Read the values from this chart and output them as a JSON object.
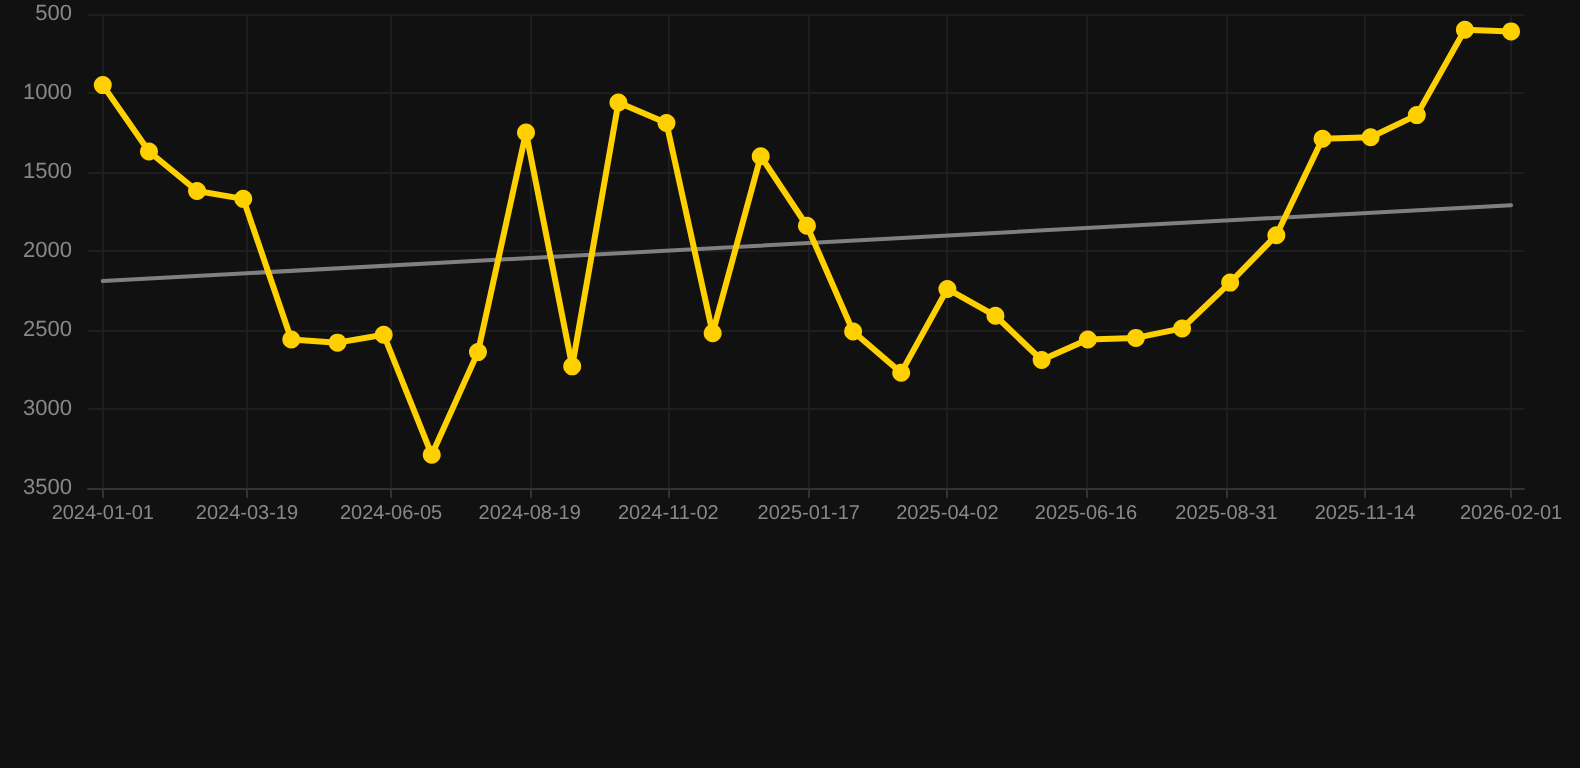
{
  "chart_data": {
    "type": "line",
    "x": [
      "2024-01-01",
      "2024-01-26",
      "2024-02-21",
      "2024-03-17",
      "2024-04-12",
      "2024-05-07",
      "2024-06-01",
      "2024-06-27",
      "2024-07-22",
      "2024-08-17",
      "2024-09-11",
      "2024-10-06",
      "2024-11-01",
      "2024-11-26",
      "2024-12-22",
      "2025-01-16",
      "2025-02-10",
      "2025-03-08",
      "2025-04-02",
      "2025-04-28",
      "2025-05-23",
      "2025-06-17",
      "2025-07-13",
      "2025-08-07",
      "2025-09-02",
      "2025-09-27",
      "2025-10-22",
      "2025-11-17",
      "2025-12-12",
      "2026-01-07",
      "2026-02-01"
    ],
    "series": [
      {
        "color": "#ffd000",
        "marker": "circle",
        "values": [
          950,
          1370,
          1620,
          1670,
          2560,
          2580,
          2530,
          3290,
          2640,
          1250,
          2730,
          1060,
          1190,
          2520,
          1400,
          1840,
          2510,
          2770,
          2240,
          2410,
          2690,
          2560,
          2550,
          2490,
          2200,
          1900,
          1290,
          1280,
          1140,
          600,
          610
        ]
      },
      {
        "color": "#808080",
        "marker": "none",
        "x": [
          "2024-01-01",
          "2026-02-01"
        ],
        "values": [
          2190,
          1710
        ]
      }
    ],
    "xlim": [
      "2023-12-24",
      "2026-02-08"
    ],
    "xticks": [
      "2024-01-01",
      "2024-03-19",
      "2024-06-05",
      "2024-08-19",
      "2024-11-02",
      "2025-01-17",
      "2025-04-02",
      "2025-06-16",
      "2025-08-31",
      "2025-11-14",
      "2026-02-01"
    ],
    "ylim": [
      3500,
      500
    ],
    "yticks": [
      500,
      1000,
      1500,
      2000,
      2500,
      3000,
      3500
    ],
    "grid": true,
    "line_style": "solid"
  }
}
